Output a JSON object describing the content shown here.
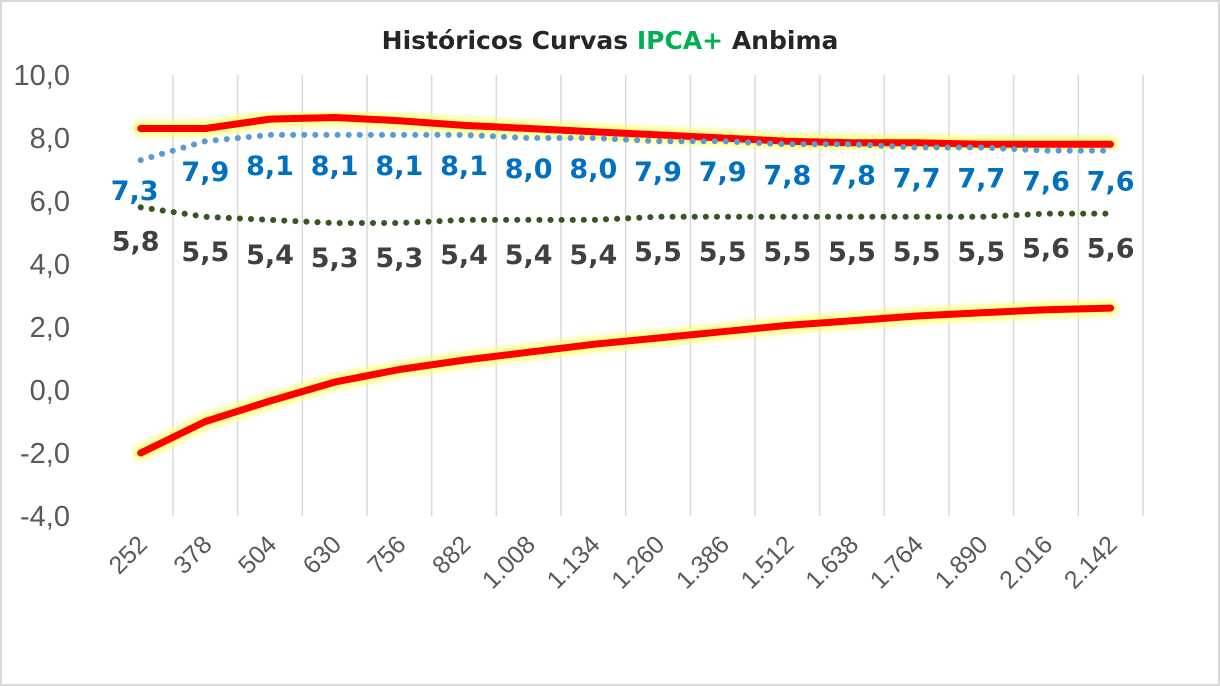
{
  "chart_data": {
    "type": "line",
    "title_parts": [
      {
        "text": "Históricos Curvas ",
        "color": "#262626"
      },
      {
        "text": "IPCA+",
        "color": "#00B050"
      },
      {
        "text": " Anbima",
        "color": "#262626"
      }
    ],
    "xlabel": "",
    "ylabel": "",
    "ylim": [
      -4,
      10
    ],
    "y_ticks": [
      {
        "value": 10,
        "label": "10,0",
        "color": "#595959"
      },
      {
        "value": 8,
        "label": "8,0",
        "color": "#595959"
      },
      {
        "value": 6,
        "label": "6,0",
        "color": "#595959"
      },
      {
        "value": 4,
        "label": "4,0",
        "color": "#595959"
      },
      {
        "value": 2,
        "label": "2,0",
        "color": "#595959"
      },
      {
        "value": 0,
        "label": "0,0",
        "color": "#595959"
      },
      {
        "value": -2,
        "label": "-2,0",
        "color": "#FF0000"
      },
      {
        "value": -4,
        "label": "-4,0",
        "color": "#FF0000"
      }
    ],
    "x_tick_labels": [
      "252",
      "378",
      "504",
      "630",
      "756",
      "882",
      "1.008",
      "1.134",
      "1.260",
      "1.386",
      "1.512",
      "1.638",
      "1.764",
      "1.890",
      "2.016",
      "2.142"
    ],
    "x_range": [
      200,
      2320
    ],
    "grid": "vertical",
    "series": [
      {
        "style": "thick-red-glow",
        "color": "#FF0000",
        "x": [
          252,
          378,
          504,
          630,
          756,
          882,
          1008,
          1134,
          1260,
          1386,
          1512,
          1638,
          1764,
          1890,
          2016,
          2142
        ],
        "values": [
          8.3,
          8.3,
          8.6,
          8.65,
          8.55,
          8.4,
          8.3,
          8.2,
          8.1,
          8.0,
          7.9,
          7.85,
          7.85,
          7.8,
          7.8,
          7.8
        ]
      },
      {
        "style": "thick-red-glow",
        "color": "#FF0000",
        "x": [
          252,
          378,
          504,
          630,
          756,
          882,
          1008,
          1134,
          1260,
          1386,
          1512,
          1638,
          1764,
          1890,
          2016,
          2142
        ],
        "values": [
          -2.0,
          -1.0,
          -0.35,
          0.25,
          0.65,
          0.95,
          1.2,
          1.45,
          1.65,
          1.85,
          2.05,
          2.2,
          2.35,
          2.45,
          2.55,
          2.6
        ]
      },
      {
        "style": "dotted",
        "color": "#5B9BD5",
        "label_color": "#0070C0",
        "x": [
          252,
          378,
          504,
          630,
          756,
          882,
          1008,
          1134,
          1260,
          1386,
          1512,
          1638,
          1764,
          1890,
          2016,
          2142
        ],
        "values": [
          7.3,
          7.9,
          8.1,
          8.1,
          8.1,
          8.1,
          8.0,
          8.0,
          7.9,
          7.9,
          7.8,
          7.8,
          7.7,
          7.7,
          7.6,
          7.6
        ],
        "data_labels": [
          "7,3",
          "7,9",
          "8,1",
          "8,1",
          "8,1",
          "8,1",
          "8,0",
          "8,0",
          "7,9",
          "7,9",
          "7,8",
          "7,8",
          "7,7",
          "7,7",
          "7,6",
          "7,6"
        ]
      },
      {
        "style": "dotted",
        "color": "#375623",
        "label_color": "#404040",
        "x": [
          252,
          378,
          504,
          630,
          756,
          882,
          1008,
          1134,
          1260,
          1386,
          1512,
          1638,
          1764,
          1890,
          2016,
          2142
        ],
        "values": [
          5.8,
          5.5,
          5.4,
          5.3,
          5.3,
          5.4,
          5.4,
          5.4,
          5.5,
          5.5,
          5.5,
          5.5,
          5.5,
          5.5,
          5.6,
          5.6
        ],
        "data_labels": [
          "5,8",
          "5,5",
          "5,4",
          "5,3",
          "5,3",
          "5,4",
          "5,4",
          "5,4",
          "5,5",
          "5,5",
          "5,5",
          "5,5",
          "5,5",
          "5,5",
          "5,6",
          "5,6"
        ]
      }
    ]
  }
}
